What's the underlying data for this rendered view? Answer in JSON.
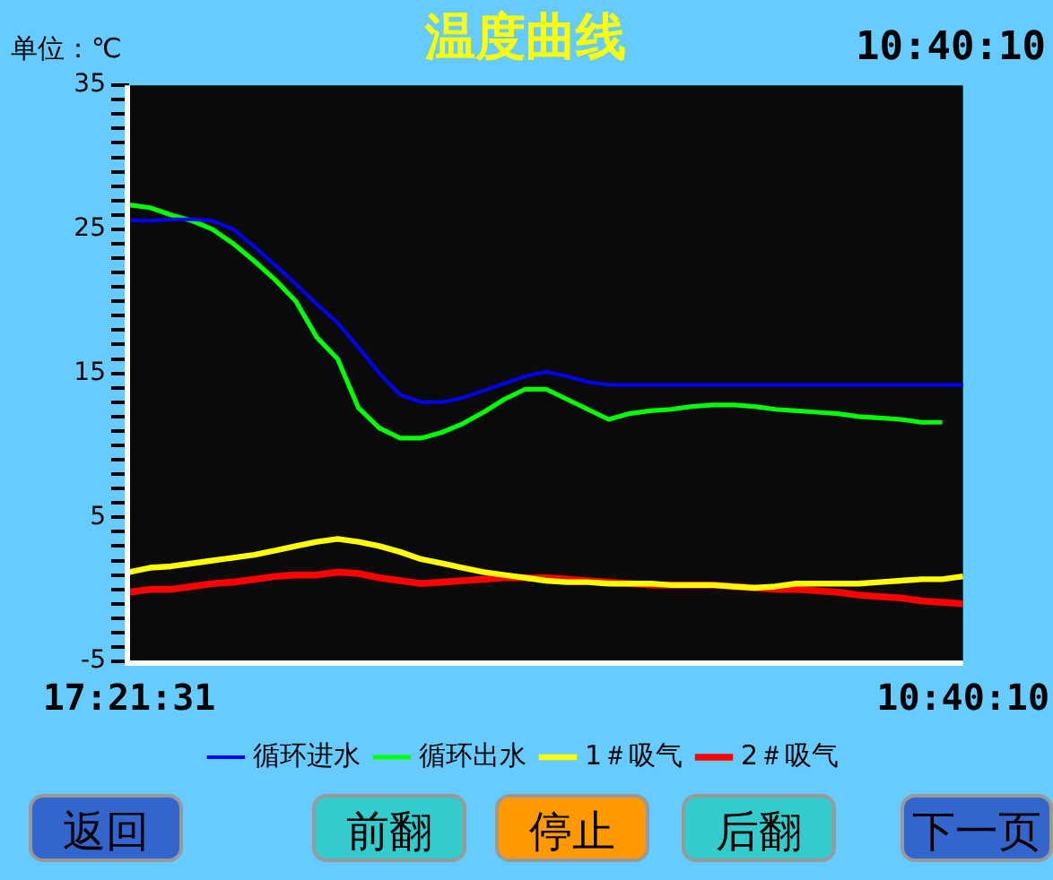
{
  "chart_data": {
    "type": "line",
    "title": "温度曲线",
    "ylabel": "单位：℃",
    "annotations": [
      "10:40:10",
      "返回",
      "前翻",
      "停止",
      "后翻",
      "下一页"
    ],
    "categories": [
      "17:21:31",
      null,
      null,
      null,
      null,
      null,
      null,
      null,
      null,
      null,
      null,
      null,
      null,
      null,
      null,
      null,
      null,
      null,
      null,
      null,
      null,
      null,
      null,
      null,
      null,
      null,
      null,
      null,
      null,
      null,
      null,
      null,
      null,
      null,
      null,
      null,
      null,
      null,
      null,
      null,
      "10:40:10"
    ],
    "ylim": [
      -5,
      35
    ],
    "yticks": [
      -5,
      {
        "value": -4,
        "label": null
      },
      {
        "value": -3,
        "label": null
      },
      {
        "value": -2,
        "label": null
      },
      {
        "value": -1,
        "label": null
      },
      {
        "value": 0,
        "label": null
      },
      {
        "value": 1,
        "label": null
      },
      {
        "value": 2,
        "label": null
      },
      {
        "value": 3,
        "label": null
      },
      {
        "value": 4,
        "label": null
      },
      5,
      {
        "value": 6,
        "label": null
      },
      {
        "value": 7,
        "label": null
      },
      {
        "value": 8,
        "label": null
      },
      {
        "value": 9,
        "label": null
      },
      {
        "value": 10,
        "label": null
      },
      {
        "value": 11,
        "label": null
      },
      {
        "value": 12,
        "label": null
      },
      {
        "value": 13,
        "label": null
      },
      {
        "value": 14,
        "label": null
      },
      15,
      {
        "value": 16,
        "label": null
      },
      {
        "value": 17,
        "label": null
      },
      {
        "value": 18,
        "label": null
      },
      {
        "value": 19,
        "label": null
      },
      {
        "value": 20,
        "label": null
      },
      {
        "value": 21,
        "label": null
      },
      {
        "value": 22,
        "label": null
      },
      {
        "value": 23,
        "label": null
      },
      {
        "value": 24,
        "label": null
      },
      25,
      {
        "value": 26,
        "label": null
      },
      {
        "value": 27,
        "label": null
      },
      {
        "value": 28,
        "label": null
      },
      {
        "value": 29,
        "label": null
      },
      {
        "value": 30,
        "label": null
      },
      {
        "value": 31,
        "label": null
      },
      {
        "value": 32,
        "label": null
      },
      {
        "value": 33,
        "label": null
      },
      {
        "value": 34,
        "label": null
      },
      35
    ],
    "legend": "bottom",
    "marker": "none",
    "line_style": "solid",
    "series": [
      {
        "name": "循环进水",
        "color": "#0000ff",
        "values": [
          25.6,
          25.6,
          25.7,
          25.7,
          25.6,
          25.0,
          23.8,
          22.5,
          21.2,
          19.8,
          18.5,
          16.8,
          15.0,
          13.5,
          13.0,
          13.0,
          13.3,
          13.8,
          14.3,
          14.8,
          15.1,
          14.8,
          14.4,
          14.2,
          14.2,
          14.2,
          14.2,
          14.2,
          14.2,
          14.2,
          14.2,
          14.2,
          14.2,
          14.2,
          14.2,
          14.2,
          14.2,
          14.2,
          14.2,
          14.2,
          14.2
        ]
      },
      {
        "name": "循环出水",
        "color": "#00ff00",
        "values": [
          26.7,
          26.5,
          26.0,
          25.6,
          25.0,
          24.0,
          22.8,
          21.5,
          20.0,
          17.5,
          16.0,
          12.6,
          11.2,
          10.5,
          10.5,
          10.9,
          11.5,
          12.3,
          13.2,
          13.9,
          13.9,
          13.2,
          12.5,
          11.8,
          12.2,
          12.4,
          12.5,
          12.7,
          12.8,
          12.8,
          12.7,
          12.5,
          12.4,
          12.3,
          12.2,
          12.0,
          11.9,
          11.8,
          11.6,
          11.6,
          null
        ]
      },
      {
        "name": "1＃吸气",
        "color": "#ffff00",
        "values": [
          1.2,
          1.5,
          1.6,
          1.8,
          2.0,
          2.2,
          2.4,
          2.7,
          3.0,
          3.3,
          3.5,
          3.3,
          3.0,
          2.6,
          2.1,
          1.8,
          1.5,
          1.2,
          1.0,
          0.8,
          0.6,
          0.5,
          0.5,
          0.4,
          0.4,
          0.4,
          0.3,
          0.3,
          0.3,
          0.2,
          0.1,
          0.2,
          0.4,
          0.4,
          0.4,
          0.4,
          0.5,
          0.6,
          0.7,
          0.7,
          0.9
        ]
      },
      {
        "name": "2＃吸气",
        "color": "#ff0000",
        "values": [
          -0.2,
          0,
          0,
          0.2,
          0.4,
          0.5,
          0.7,
          0.9,
          1.0,
          1.0,
          1.2,
          1.1,
          0.8,
          0.6,
          0.4,
          0.5,
          0.6,
          0.7,
          0.8,
          0.8,
          0.8,
          0.7,
          0.6,
          0.5,
          0.4,
          0.3,
          0.3,
          0.3,
          0.3,
          0.2,
          0.1,
          0,
          0,
          -0.1,
          -0.2,
          -0.4,
          -0.5,
          -0.6,
          -0.8,
          -0.9,
          -1.0
        ]
      }
    ]
  }
}
